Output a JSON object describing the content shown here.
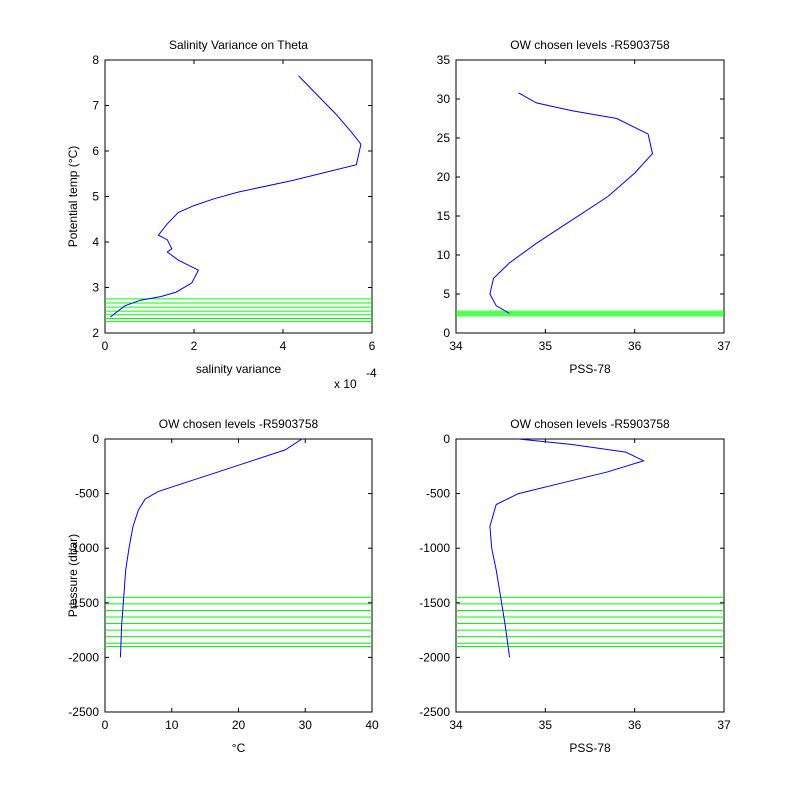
{
  "chart_data": [
    {
      "id": "tl",
      "type": "line",
      "title": "Salinity Variance on Theta",
      "xlabel": "salinity variance",
      "ylabel": "Potential temp (°C)",
      "x_multiplier_label": "x 10",
      "x_multiplier_exponent": "-4",
      "xlim": [
        0,
        6
      ],
      "ylim": [
        2,
        8
      ],
      "xticks": [
        "0",
        "2",
        "4",
        "6"
      ],
      "yticks": [
        "2",
        "3",
        "4",
        "5",
        "6",
        "7",
        "8"
      ],
      "series": [
        {
          "color": "#0000ff",
          "points": [
            [
              4.35,
              7.65
            ],
            [
              4.8,
              7.2
            ],
            [
              5.2,
              6.8
            ],
            [
              5.55,
              6.4
            ],
            [
              5.75,
              6.15
            ],
            [
              5.65,
              5.7
            ],
            [
              4.2,
              5.35
            ],
            [
              3.0,
              5.1
            ],
            [
              2.45,
              4.95
            ],
            [
              2.0,
              4.8
            ],
            [
              1.65,
              4.65
            ],
            [
              1.4,
              4.4
            ],
            [
              1.2,
              4.15
            ],
            [
              1.4,
              4.05
            ],
            [
              1.5,
              3.85
            ],
            [
              1.4,
              3.78
            ],
            [
              1.65,
              3.6
            ],
            [
              2.1,
              3.38
            ],
            [
              1.95,
              3.1
            ],
            [
              1.6,
              2.9
            ],
            [
              1.25,
              2.8
            ],
            [
              0.8,
              2.72
            ],
            [
              0.45,
              2.6
            ],
            [
              0.25,
              2.45
            ],
            [
              0.12,
              2.35
            ]
          ]
        }
      ],
      "green_levels": [
        2.25,
        2.32,
        2.4,
        2.48,
        2.57,
        2.66,
        2.75
      ]
    },
    {
      "id": "tr",
      "type": "line",
      "title": "OW chosen levels -R5903758",
      "xlabel": "PSS-78",
      "ylabel": "",
      "xlim": [
        34,
        37
      ],
      "ylim": [
        0,
        35
      ],
      "xticks": [
        "34",
        "35",
        "36",
        "37"
      ],
      "yticks": [
        "0",
        "5",
        "10",
        "15",
        "20",
        "25",
        "30",
        "35"
      ],
      "series": [
        {
          "color": "#0000ff",
          "points": [
            [
              34.6,
              2.5
            ],
            [
              34.45,
              3.5
            ],
            [
              34.38,
              5.0
            ],
            [
              34.42,
              7.0
            ],
            [
              34.6,
              9.0
            ],
            [
              34.9,
              11.5
            ],
            [
              35.3,
              14.5
            ],
            [
              35.7,
              17.5
            ],
            [
              36.0,
              20.5
            ],
            [
              36.2,
              23.0
            ],
            [
              36.15,
              25.5
            ],
            [
              35.8,
              27.5
            ],
            [
              35.3,
              28.5
            ],
            [
              34.9,
              29.5
            ],
            [
              34.7,
              30.8
            ]
          ]
        }
      ],
      "green_levels": [
        2.2,
        2.4,
        2.6,
        2.8
      ]
    },
    {
      "id": "bl",
      "type": "line",
      "title": "OW chosen levels -R5903758",
      "xlabel": "°C",
      "ylabel": "Pressure (dbar)",
      "xlim": [
        0,
        40
      ],
      "ylim": [
        -2500,
        0
      ],
      "xticks": [
        "0",
        "10",
        "20",
        "30",
        "40"
      ],
      "yticks": [
        "-2500",
        "-2000",
        "-1500",
        "-1000",
        "-500",
        "0"
      ],
      "series": [
        {
          "color": "#0000ff",
          "points": [
            [
              29.5,
              0
            ],
            [
              27.0,
              -100
            ],
            [
              22.0,
              -200
            ],
            [
              17.0,
              -300
            ],
            [
              12.0,
              -400
            ],
            [
              8.0,
              -480
            ],
            [
              6.0,
              -550
            ],
            [
              5.0,
              -650
            ],
            [
              4.2,
              -800
            ],
            [
              3.6,
              -1000
            ],
            [
              3.1,
              -1200
            ],
            [
              2.8,
              -1450
            ],
            [
              2.5,
              -1700
            ],
            [
              2.3,
              -2000
            ]
          ]
        }
      ],
      "green_levels": [
        -1450,
        -1510,
        -1570,
        -1630,
        -1690,
        -1750,
        -1810,
        -1870,
        -1900
      ]
    },
    {
      "id": "br",
      "type": "line",
      "title": "OW chosen levels -R5903758",
      "xlabel": "PSS-78",
      "ylabel": "",
      "xlim": [
        34,
        37
      ],
      "ylim": [
        -2500,
        0
      ],
      "xticks": [
        "34",
        "35",
        "36",
        "37"
      ],
      "yticks": [
        "-2500",
        "-2000",
        "-1500",
        "-1000",
        "-500",
        "0"
      ],
      "series": [
        {
          "color": "#0000ff",
          "points": [
            [
              34.7,
              0
            ],
            [
              35.3,
              -50
            ],
            [
              35.9,
              -120
            ],
            [
              36.1,
              -200
            ],
            [
              35.7,
              -300
            ],
            [
              35.2,
              -400
            ],
            [
              34.7,
              -500
            ],
            [
              34.45,
              -600
            ],
            [
              34.38,
              -800
            ],
            [
              34.4,
              -1000
            ],
            [
              34.45,
              -1200
            ],
            [
              34.5,
              -1450
            ],
            [
              34.55,
              -1700
            ],
            [
              34.6,
              -2000
            ]
          ]
        }
      ],
      "green_levels": [
        -1450,
        -1510,
        -1570,
        -1630,
        -1690,
        -1750,
        -1810,
        -1870,
        -1900
      ]
    }
  ]
}
